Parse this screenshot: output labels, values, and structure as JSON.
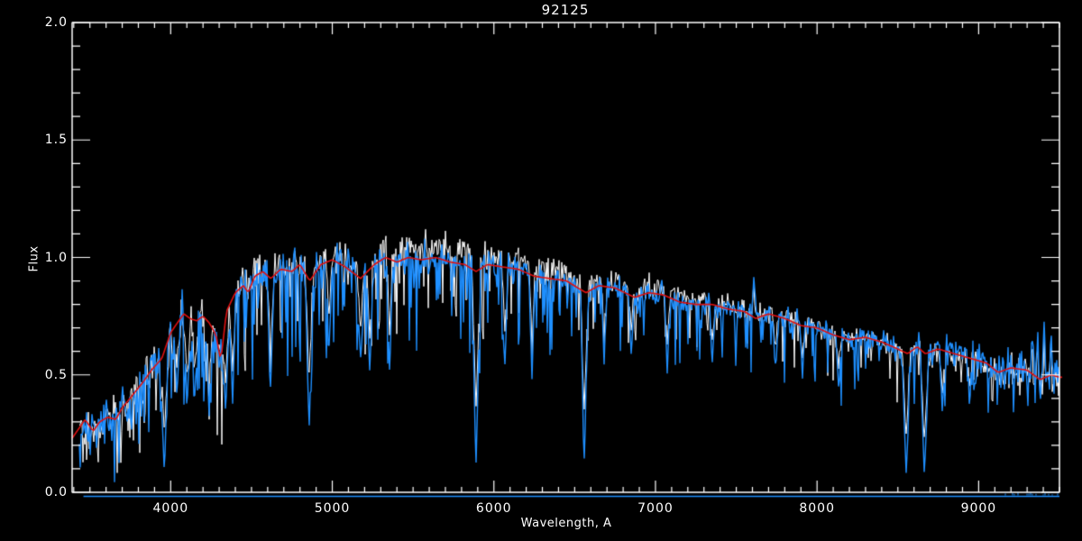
{
  "title": "92125",
  "axes": {
    "xlabel": "Wavelength, A",
    "ylabel": "Flux",
    "xmin": 3390,
    "xmax": 9500,
    "ymin": 0.0,
    "ymax": 2.0,
    "x_major_ticks": [
      4000,
      5000,
      6000,
      7000,
      8000,
      9000
    ],
    "x_tick_labels": [
      "4000",
      "5000",
      "6000",
      "7000",
      "8000",
      "9000"
    ],
    "x_minor_step": 100,
    "y_major_ticks": [
      0.0,
      0.5,
      1.0,
      1.5,
      2.0
    ],
    "y_tick_labels": [
      "0.0",
      "0.5",
      "1.0",
      "1.5",
      "2.0"
    ],
    "y_minor_step": 0.1
  },
  "colors": {
    "background": "#000000",
    "axis": "#ffffff",
    "observed_spectrum": "#1e8fff",
    "reference_spectrum": "#ffffff",
    "model_fit": "#e01010"
  },
  "seed": 7,
  "chart_data": {
    "type": "line",
    "title": "92125",
    "xlabel": "Wavelength, A",
    "ylabel": "Flux",
    "xlim": [
      3390,
      9500
    ],
    "ylim": [
      0.0,
      2.0
    ],
    "grid": false,
    "legend": null,
    "series": [
      {
        "name": "model-fit-continuum",
        "color": "#e01010",
        "x": [
          3390,
          3430,
          3470,
          3520,
          3560,
          3610,
          3660,
          3700,
          3760,
          3830,
          3880,
          3920,
          3945,
          3970,
          4000,
          4040,
          4080,
          4120,
          4160,
          4200,
          4240,
          4280,
          4310,
          4345,
          4400,
          4450,
          4480,
          4520,
          4570,
          4620,
          4680,
          4750,
          4800,
          4860,
          4930,
          5000,
          5080,
          5175,
          5260,
          5330,
          5400,
          5470,
          5550,
          5640,
          5730,
          5820,
          5890,
          5960,
          6050,
          6150,
          6250,
          6350,
          6450,
          6520,
          6570,
          6650,
          6750,
          6870,
          6960,
          7050,
          7150,
          7250,
          7350,
          7450,
          7550,
          7620,
          7700,
          7800,
          7900,
          8000,
          8100,
          8200,
          8300,
          8400,
          8500,
          8560,
          8620,
          8670,
          8750,
          8850,
          8950,
          9050,
          9120,
          9200,
          9300,
          9380,
          9450,
          9500
        ],
        "y": [
          0.23,
          0.27,
          0.31,
          0.26,
          0.3,
          0.32,
          0.31,
          0.36,
          0.41,
          0.47,
          0.52,
          0.55,
          0.57,
          0.62,
          0.68,
          0.72,
          0.76,
          0.74,
          0.73,
          0.75,
          0.72,
          0.67,
          0.56,
          0.77,
          0.85,
          0.88,
          0.85,
          0.92,
          0.94,
          0.91,
          0.95,
          0.94,
          0.97,
          0.9,
          0.97,
          0.99,
          0.96,
          0.91,
          0.97,
          1.0,
          0.98,
          1.0,
          0.99,
          1.0,
          0.98,
          0.97,
          0.94,
          0.97,
          0.96,
          0.95,
          0.92,
          0.91,
          0.9,
          0.87,
          0.85,
          0.88,
          0.87,
          0.83,
          0.85,
          0.84,
          0.81,
          0.8,
          0.8,
          0.78,
          0.77,
          0.74,
          0.76,
          0.74,
          0.71,
          0.7,
          0.67,
          0.65,
          0.66,
          0.64,
          0.61,
          0.59,
          0.62,
          0.59,
          0.61,
          0.59,
          0.57,
          0.55,
          0.51,
          0.53,
          0.52,
          0.48,
          0.5,
          0.49
        ]
      },
      {
        "name": "observed-spectrum-noisy",
        "color": "#1e8fff",
        "style": "noisy-trace-following-model",
        "data_start_wl": 3430,
        "data_end_wl": 9500
      },
      {
        "name": "reference-spectrum-noisy",
        "color": "#ffffff",
        "style": "noisy-trace-following-model-plus-offset",
        "data_start_wl": 3430,
        "data_end_wl": 9500
      }
    ],
    "white_offset_profile": [
      {
        "wl": 3430,
        "off": 0.005
      },
      {
        "wl": 4600,
        "off": 0.01
      },
      {
        "wl": 5000,
        "off": 0.03
      },
      {
        "wl": 5400,
        "off": 0.045
      },
      {
        "wl": 5800,
        "off": 0.05
      },
      {
        "wl": 6200,
        "off": 0.04
      },
      {
        "wl": 6600,
        "off": 0.03
      },
      {
        "wl": 7000,
        "off": 0.02
      },
      {
        "wl": 7500,
        "off": 0.015
      },
      {
        "wl": 8000,
        "off": 0.01
      },
      {
        "wl": 8300,
        "off": 0.0
      },
      {
        "wl": 8700,
        "off": -0.01
      },
      {
        "wl": 9500,
        "off": -0.012
      }
    ],
    "noise_profile": [
      {
        "wl": 3430,
        "sigma": 0.045,
        "p_down": 0.25,
        "down_max": 0.22
      },
      {
        "wl": 3900,
        "sigma": 0.055,
        "p_down": 0.3,
        "down_max": 0.38
      },
      {
        "wl": 4600,
        "sigma": 0.048,
        "p_down": 0.24,
        "down_max": 0.42
      },
      {
        "wl": 5500,
        "sigma": 0.035,
        "p_down": 0.22,
        "down_max": 0.45
      },
      {
        "wl": 6500,
        "sigma": 0.028,
        "p_down": 0.18,
        "down_max": 0.3
      },
      {
        "wl": 7600,
        "sigma": 0.024,
        "p_down": 0.15,
        "down_max": 0.25
      },
      {
        "wl": 8400,
        "sigma": 0.027,
        "p_down": 0.15,
        "down_max": 0.3
      },
      {
        "wl": 9150,
        "sigma": 0.04,
        "p_down": 0.1,
        "down_max": 0.15
      },
      {
        "wl": 9500,
        "sigma": 0.05,
        "p_down": 0.1,
        "down_max": 0.15
      }
    ],
    "absorption_lines": [
      {
        "wl": 3960,
        "flux": 0.09,
        "hw": 30
      },
      {
        "wl": 4037,
        "flux": 0.42,
        "hw": 25
      },
      {
        "wl": 4102,
        "flux": 0.38,
        "hw": 25
      },
      {
        "wl": 4150,
        "flux": 0.4,
        "hw": 22
      },
      {
        "wl": 4238,
        "flux": 0.33,
        "hw": 22
      },
      {
        "wl": 4340,
        "flux": 0.35,
        "hw": 25
      },
      {
        "wl": 4383,
        "flux": 0.38,
        "hw": 22
      },
      {
        "wl": 4618,
        "flux": 0.45,
        "hw": 22
      },
      {
        "wl": 4857,
        "flux": 0.3,
        "hw": 25
      },
      {
        "wl": 4981,
        "flux": 0.6,
        "hw": 20
      },
      {
        "wl": 5175,
        "flux": 0.55,
        "hw": 25
      },
      {
        "wl": 5232,
        "flux": 0.48,
        "hw": 20
      },
      {
        "wl": 5355,
        "flux": 0.52,
        "hw": 20
      },
      {
        "wl": 5890,
        "flux": 0.1,
        "hw": 28
      },
      {
        "wl": 6068,
        "flux": 0.55,
        "hw": 20
      },
      {
        "wl": 6236,
        "flux": 0.48,
        "hw": 20
      },
      {
        "wl": 6560,
        "flux": 0.14,
        "hw": 25
      },
      {
        "wl": 6683,
        "flux": 0.55,
        "hw": 18
      },
      {
        "wl": 6850,
        "flux": 0.6,
        "hw": 18
      },
      {
        "wl": 7073,
        "flux": 0.52,
        "hw": 18
      },
      {
        "wl": 7352,
        "flux": 0.55,
        "hw": 18
      },
      {
        "wl": 7743,
        "flux": 0.52,
        "hw": 18
      },
      {
        "wl": 7910,
        "flux": 0.5,
        "hw": 18
      },
      {
        "wl": 8133,
        "flux": 0.45,
        "hw": 18
      },
      {
        "wl": 8552,
        "flux": 0.07,
        "hw": 26
      },
      {
        "wl": 8664,
        "flux": 0.05,
        "hw": 26
      },
      {
        "wl": 8775,
        "flux": 0.35,
        "hw": 20
      },
      {
        "wl": 8943,
        "flux": 0.38,
        "hw": 20
      }
    ],
    "emission_spikes": [
      {
        "wl": 7610,
        "flux": 0.91,
        "hw": 18
      },
      {
        "wl": 7628,
        "flux": 0.8,
        "hw": 12
      },
      {
        "wl": 9330,
        "flux": 0.67,
        "hw": 12
      },
      {
        "wl": 9365,
        "flux": 0.72,
        "hw": 10
      },
      {
        "wl": 9405,
        "flux": 0.75,
        "hw": 10
      },
      {
        "wl": 9448,
        "flux": 0.7,
        "hw": 10
      }
    ],
    "zero_line": {
      "flux": 0.0,
      "start_wl": 3460,
      "end_wl": 9500,
      "noise_after_wl": 9150
    }
  }
}
